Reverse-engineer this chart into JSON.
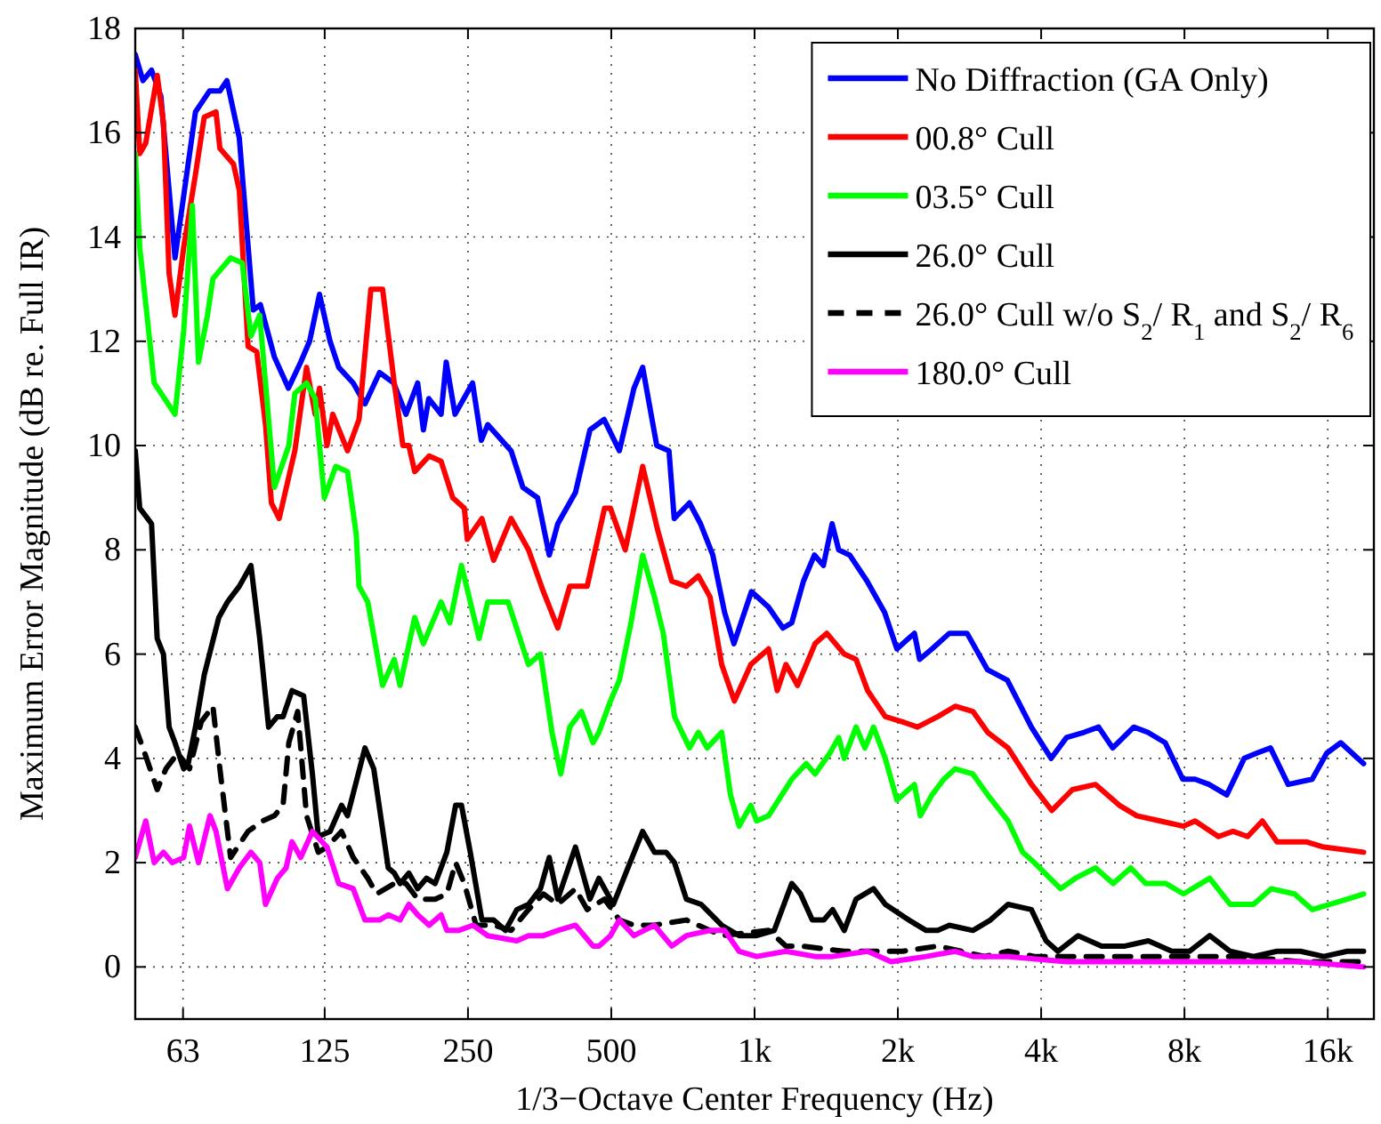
{
  "chart_data": {
    "type": "line",
    "xlabel": "1/3−Octave Center Frequency (Hz)",
    "ylabel": "Maximum Error Magnitude (dB re. Full IR)",
    "log": "x",
    "grid": true,
    "legend": "top right",
    "xlim": [
      50,
      20000
    ],
    "ylim": [
      -1,
      18
    ],
    "xticks": [
      63,
      125,
      250,
      500,
      {
        "value": 1000,
        "label": "1k"
      },
      {
        "value": 2000,
        "label": "2k"
      },
      {
        "value": 4000,
        "label": "4k"
      },
      {
        "value": 8000,
        "label": "8k"
      },
      {
        "value": 16000,
        "label": "16k"
      }
    ],
    "yticks": [
      0,
      2,
      4,
      6,
      8,
      10,
      12,
      14,
      16,
      18
    ],
    "series": [
      {
        "name": "No Diffraction (GA Only)",
        "color": "#0000ff",
        "x": [
          50,
          51.9,
          54.1,
          56.6,
          60.6,
          66.9,
          71.6,
          75.3,
          77.9,
          82.7,
          88.5,
          91.6,
          98,
          104.9,
          111.3,
          116.2,
          121.9,
          128.3,
          133.8,
          143.5,
          151.9,
          163,
          174.5,
          185.2,
          196,
          201.5,
          206.8,
          219.5,
          225,
          234.8,
          255.6,
          266.7,
          275.1,
          308,
          326,
          350,
          370.4,
          386,
          420.5,
          451,
          483,
          520,
          558,
          582,
          623,
          661,
          678,
          730,
          770,
          817,
          865,
          905,
          985,
          1070,
          1147,
          1197,
          1267,
          1336,
          1395,
          1455,
          1502,
          1584,
          1723,
          1876,
          1991,
          2167,
          2222,
          2359,
          2566,
          2795,
          3086,
          3396,
          3815,
          4198,
          4522,
          4921,
          5281,
          5653,
          6260,
          6700,
          7290,
          7935,
          8420,
          9010,
          9816,
          10680,
          11340,
          12130,
          13210,
          14840,
          15920,
          17040,
          19030
        ],
        "values": [
          17.5,
          17.0,
          17.2,
          16.7,
          13.6,
          16.4,
          16.8,
          16.8,
          17.0,
          15.9,
          12.6,
          12.7,
          11.7,
          11.1,
          11.6,
          12.0,
          12.9,
          12.0,
          11.5,
          11.2,
          10.8,
          11.4,
          11.2,
          10.6,
          11.2,
          10.3,
          10.9,
          10.6,
          11.6,
          10.6,
          11.2,
          10.1,
          10.4,
          9.9,
          9.2,
          9.0,
          7.9,
          8.5,
          9.1,
          10.3,
          10.5,
          9.9,
          11.1,
          11.5,
          10.0,
          9.9,
          8.6,
          8.9,
          8.5,
          7.9,
          6.8,
          6.2,
          7.2,
          6.9,
          6.5,
          6.6,
          7.4,
          7.9,
          7.7,
          8.5,
          8.0,
          7.9,
          7.4,
          6.8,
          6.1,
          6.4,
          5.9,
          6.1,
          6.4,
          6.4,
          5.7,
          5.5,
          4.6,
          4.0,
          4.4,
          4.5,
          4.6,
          4.2,
          4.6,
          4.5,
          4.3,
          3.6,
          3.6,
          3.5,
          3.3,
          4.0,
          4.1,
          4.2,
          3.5,
          3.6,
          4.1,
          4.3,
          3.9
        ]
      },
      {
        "name": "00.8° Cull",
        "color": "#ff0000",
        "x": [
          50,
          51.1,
          52.6,
          55.6,
          57.3,
          58.9,
          60.6,
          63.2,
          66.9,
          69.8,
          73.9,
          75.3,
          80.4,
          82.7,
          86.3,
          90,
          93.9,
          96.6,
          100.3,
          108.2,
          114.5,
          119.4,
          121.9,
          126.4,
          130,
          139.6,
          147.6,
          156.3,
          165.4,
          175,
          182.5,
          187.8,
          193.2,
          207.2,
          219.5,
          232.2,
          245.6,
          249.2,
          267.4,
          283,
          308,
          335,
          360,
          386,
          409,
          445,
          484,
          498,
          535,
          582,
          625,
          670,
          719,
          762,
          806,
          853,
          907,
          982,
          1070,
          1116,
          1164,
          1231,
          1340,
          1418,
          1543,
          1634,
          1728,
          1882,
          2048,
          2199,
          2426,
          2640,
          2875,
          3088,
          3408,
          3818,
          4213,
          4652,
          5204,
          5837,
          6350,
          7113,
          7965,
          8420,
          9428,
          10120,
          10860,
          11660,
          12520,
          14410,
          15690,
          19030
        ],
        "values": [
          17.2,
          15.6,
          15.8,
          17.1,
          16.2,
          13.3,
          12.5,
          13.8,
          15.2,
          16.3,
          16.4,
          15.7,
          15.4,
          14.9,
          11.9,
          11.8,
          10.4,
          8.9,
          8.6,
          9.9,
          11.5,
          10.6,
          11.1,
          10.0,
          10.6,
          9.9,
          10.5,
          13.0,
          13.0,
          11.2,
          10.0,
          10.0,
          9.5,
          9.8,
          9.7,
          9.0,
          8.8,
          8.2,
          8.6,
          7.8,
          8.6,
          8.0,
          7.2,
          6.5,
          7.3,
          7.3,
          8.8,
          8.8,
          8.0,
          9.6,
          8.4,
          7.4,
          7.3,
          7.5,
          7.1,
          5.8,
          5.1,
          5.8,
          6.1,
          5.3,
          5.8,
          5.4,
          6.2,
          6.4,
          6.0,
          5.9,
          5.3,
          4.8,
          4.7,
          4.6,
          4.8,
          5.0,
          4.9,
          4.5,
          4.2,
          3.5,
          3.0,
          3.4,
          3.5,
          3.1,
          2.9,
          2.8,
          2.7,
          2.8,
          2.5,
          2.6,
          2.5,
          2.8,
          2.4,
          2.4,
          2.3,
          2.2
        ]
      },
      {
        "name": "03.5° Cull",
        "color": "#00ff00",
        "x": [
          50,
          51.1,
          54.8,
          60.6,
          63.2,
          65.9,
          67.9,
          70.9,
          72.8,
          79.3,
          83.9,
          87.5,
          91.3,
          98,
          105.1,
          108.2,
          114.5,
          119.4,
          124.8,
          131.9,
          139.6,
          145.6,
          147.6,
          154,
          165.4,
          175,
          180,
          193.2,
          201.5,
          219.5,
          229,
          242.3,
          263.8,
          275.1,
          303.6,
          335,
          355,
          375.3,
          391.6,
          409,
          432.7,
          457.8,
          471,
          498,
          520,
          550,
          582,
          616,
          643,
          679,
          730,
          762,
          795,
          853,
          890,
          928,
          982,
          1010,
          1070,
          1197,
          1284,
          1340,
          1439,
          1502,
          1543,
          1634,
          1705,
          1778,
          1882,
          1991,
          2167,
          2230,
          2359,
          2498,
          2640,
          2875,
          3088,
          3408,
          3658,
          3870,
          4395,
          4720,
          5204,
          5668,
          6170,
          6630,
          7313,
          7965,
          9040,
          9980,
          11170,
          12170,
          13620,
          14840,
          16140,
          17590,
          19030
        ],
        "values": [
          15.6,
          13.8,
          11.2,
          10.6,
          12.2,
          14.6,
          11.6,
          12.5,
          13.2,
          13.6,
          13.5,
          12.1,
          12.5,
          9.2,
          10.0,
          11.0,
          11.2,
          10.9,
          9.0,
          9.6,
          9.5,
          8.3,
          7.3,
          7.0,
          5.4,
          5.9,
          5.4,
          6.7,
          6.2,
          7.0,
          6.6,
          7.7,
          6.3,
          7.0,
          7.0,
          5.8,
          6.0,
          4.5,
          3.7,
          4.6,
          4.9,
          4.3,
          4.5,
          5.1,
          5.5,
          6.6,
          7.9,
          7.1,
          6.4,
          4.8,
          4.2,
          4.5,
          4.2,
          4.5,
          3.3,
          2.7,
          3.1,
          2.8,
          2.9,
          3.6,
          3.9,
          3.7,
          4.1,
          4.4,
          4.0,
          4.6,
          4.2,
          4.6,
          4.0,
          3.2,
          3.5,
          2.9,
          3.3,
          3.6,
          3.8,
          3.7,
          3.3,
          2.8,
          2.2,
          2.0,
          1.5,
          1.7,
          1.9,
          1.6,
          1.9,
          1.6,
          1.6,
          1.4,
          1.7,
          1.2,
          1.2,
          1.5,
          1.4,
          1.1,
          1.2,
          1.3,
          1.4
        ]
      },
      {
        "name": "26.0° Cull",
        "color": "#000000",
        "x": [
          50,
          51.1,
          54.1,
          55.6,
          57.3,
          58.9,
          60.6,
          63.2,
          64.6,
          66.9,
          69.8,
          74.9,
          78.1,
          82.7,
          87.5,
          91.3,
          95.3,
          99.4,
          102.2,
          106.7,
          112.9,
          117.8,
          121.2,
          128.3,
          135.6,
          139.6,
          151.9,
          158.5,
          170,
          175,
          180,
          187.8,
          196,
          204.5,
          213.3,
          225.7,
          235.5,
          242.3,
          252.8,
          267.4,
          283,
          299.6,
          316.7,
          335,
          355,
          370.4,
          386,
          420.5,
          451,
          471,
          505,
          542,
          582,
          616,
          652,
          679,
          719,
          772,
          853,
          928,
          1010,
          1100,
          1197,
          1249,
          1322,
          1398,
          1459,
          1543,
          1634,
          1778,
          1882,
          2109,
          2294,
          2426,
          2566,
          2875,
          3130,
          3408,
          3815,
          4096,
          4336,
          4783,
          5359,
          6001,
          6718,
          7527,
          8192,
          9040,
          9980,
          11170,
          12520,
          14020,
          15690,
          17590,
          19030
        ],
        "values": [
          9.9,
          8.8,
          8.5,
          6.3,
          6.0,
          4.6,
          4.3,
          3.8,
          3.9,
          4.6,
          5.6,
          6.7,
          7.0,
          7.3,
          7.7,
          6.3,
          4.6,
          4.8,
          4.8,
          5.3,
          5.2,
          3.7,
          2.5,
          2.6,
          3.1,
          2.9,
          4.2,
          3.8,
          1.9,
          1.8,
          1.6,
          1.8,
          1.5,
          1.7,
          1.6,
          2.2,
          3.1,
          3.1,
          2.2,
          0.9,
          0.9,
          0.7,
          1.1,
          1.2,
          1.5,
          2.1,
          1.3,
          2.3,
          1.3,
          1.7,
          1.2,
          1.9,
          2.6,
          2.2,
          2.2,
          2.0,
          1.3,
          1.2,
          0.8,
          0.6,
          0.6,
          0.7,
          1.6,
          1.4,
          0.9,
          0.9,
          1.1,
          0.7,
          1.3,
          1.5,
          1.2,
          0.9,
          0.7,
          0.7,
          0.8,
          0.7,
          0.9,
          1.2,
          1.1,
          0.5,
          0.3,
          0.6,
          0.4,
          0.4,
          0.5,
          0.3,
          0.3,
          0.6,
          0.3,
          0.2,
          0.3,
          0.3,
          0.2,
          0.3,
          0.3
        ]
      },
      {
        "name": "26.0° Cull w/o S$_{2}$/ R$_{1}$ and S$_{2}$/ R$_{6}$",
        "color": "#000000",
        "line_style": "dashed",
        "x": [
          50,
          51.9,
          55.6,
          58,
          61.4,
          65,
          68.8,
          72.8,
          75.3,
          79.3,
          86.3,
          92.6,
          98,
          102.2,
          105.1,
          109.7,
          114.5,
          121.2,
          126.4,
          135.6,
          143.5,
          154,
          160.7,
          175,
          185.2,
          196,
          213.3,
          225.7,
          235.5,
          245.6,
          260,
          283,
          308,
          335,
          360,
          386,
          420.5,
          445,
          484,
          520,
          558,
          616,
          719,
          853,
          1070,
          1164,
          1257,
          1543,
          1728,
          2048,
          2426,
          2719,
          3044,
          3408,
          3872,
          4522,
          6001,
          7965,
          10560,
          14020,
          19030
        ],
        "values": [
          4.6,
          4.2,
          3.4,
          3.8,
          4.1,
          3.8,
          4.7,
          5.0,
          3.8,
          2.1,
          2.6,
          2.8,
          2.9,
          3.1,
          4.3,
          4.9,
          2.9,
          2.2,
          2.3,
          2.6,
          2.1,
          1.7,
          1.4,
          1.6,
          1.6,
          1.3,
          1.3,
          1.4,
          2.0,
          1.6,
          0.8,
          0.8,
          0.7,
          1.1,
          1.4,
          1.2,
          1.5,
          1.1,
          1.3,
          0.9,
          0.8,
          0.8,
          0.9,
          0.6,
          0.7,
          0.4,
          0.4,
          0.3,
          0.3,
          0.3,
          0.4,
          0.3,
          0.2,
          0.3,
          0.2,
          0.2,
          0.2,
          0.2,
          0.2,
          0.1,
          0.1
        ]
      },
      {
        "name": "180.0° Cull",
        "color": "#ff00ff",
        "x": [
          50,
          52.6,
          54.8,
          57.3,
          59.8,
          63.2,
          65,
          67.9,
          71.8,
          73.9,
          78.1,
          82.7,
          87.5,
          91.3,
          93.9,
          99.4,
          103.7,
          106.7,
          111.3,
          117.8,
          126.4,
          133.8,
          143.5,
          151.9,
          163,
          170,
          180,
          187.8,
          196,
          207.2,
          219.5,
          225.7,
          238.9,
          256.2,
          275.1,
          316.7,
          335,
          360,
          386,
          420.5,
          457.8,
          471,
          498,
          520,
          558,
          616,
          670,
          719,
          806,
          865,
          928,
          1010,
          1164,
          1340,
          1459,
          1728,
          1936,
          2294,
          2640,
          2875,
          3408,
          4522,
          6001,
          9170,
          14020,
          19030
        ],
        "values": [
          2.1,
          2.8,
          2.0,
          2.2,
          2.0,
          2.1,
          2.7,
          2.0,
          2.9,
          2.6,
          1.5,
          1.9,
          2.2,
          2.0,
          1.2,
          1.7,
          1.9,
          2.4,
          2.1,
          2.6,
          2.3,
          1.6,
          1.5,
          0.9,
          0.9,
          1.0,
          0.9,
          1.2,
          1.0,
          0.8,
          1.0,
          0.7,
          0.7,
          0.8,
          0.6,
          0.5,
          0.6,
          0.6,
          0.7,
          0.8,
          0.4,
          0.4,
          0.6,
          0.9,
          0.6,
          0.8,
          0.4,
          0.6,
          0.7,
          0.7,
          0.3,
          0.2,
          0.3,
          0.2,
          0.2,
          0.3,
          0.1,
          0.2,
          0.3,
          0.2,
          0.2,
          0.1,
          0.1,
          0.1,
          0.1,
          0.0
        ]
      }
    ]
  }
}
